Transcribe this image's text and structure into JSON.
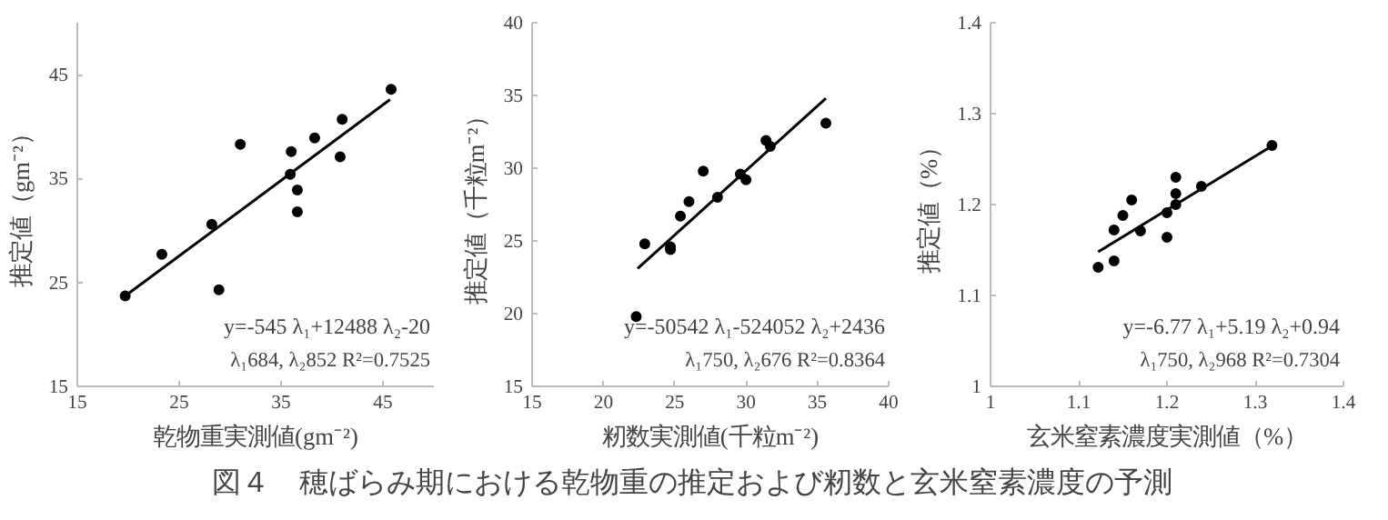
{
  "chart_data": [
    {
      "type": "scatter",
      "xlabel": "乾物重実測値(gm⁻²)",
      "ylabel": "推定値（gm⁻²）",
      "xlim": [
        15,
        50
      ],
      "ylim": [
        15,
        50
      ],
      "xticks": [
        15,
        25,
        35,
        45
      ],
      "yticks": [
        15,
        25,
        35,
        45
      ],
      "annotations": [
        "y=-545 λ₁+12488 λ₂-20",
        "λ₁684, λ₂852 R²=0.7525"
      ],
      "series": [
        {
          "marker": "circle",
          "color": "#000000",
          "x": [
            19.7,
            23.3,
            28.2,
            28.9,
            31.0,
            36.0,
            35.9,
            36.6,
            36.6,
            38.3,
            41.0,
            40.8,
            45.8
          ],
          "values": [
            23.7,
            27.7,
            30.6,
            24.3,
            38.3,
            37.6,
            35.4,
            33.9,
            31.8,
            38.9,
            40.7,
            37.1,
            43.6
          ]
        },
        {
          "type": "line",
          "color": "#000000",
          "x": [
            19.7,
            45.7
          ],
          "values": [
            23.7,
            42.6
          ]
        }
      ]
    },
    {
      "type": "scatter",
      "xlabel": "籾数実測値(千粒m⁻²)",
      "ylabel": "推定値（千粒m⁻²）",
      "xlim": [
        15,
        40
      ],
      "ylim": [
        15,
        40
      ],
      "xticks": [
        15,
        20,
        25,
        30,
        35,
        40
      ],
      "yticks": [
        15,
        20,
        25,
        30,
        35,
        40
      ],
      "annotations": [
        "y=-50542 λ₁-524052 λ₂+2436",
        "λ₁750, λ₂676 R²=0.8364"
      ],
      "series": [
        {
          "marker": "circle",
          "color": "#000000",
          "x": [
            22.3,
            22.9,
            24.7,
            24.7,
            25.4,
            26.0,
            27.0,
            28.0,
            29.6,
            30.0,
            31.4,
            31.7,
            35.6
          ],
          "values": [
            19.8,
            24.8,
            24.6,
            24.4,
            26.7,
            27.7,
            29.8,
            28.0,
            29.6,
            29.2,
            31.9,
            31.5,
            33.1
          ]
        },
        {
          "type": "line",
          "color": "#000000",
          "x": [
            22.4,
            35.6
          ],
          "values": [
            23.1,
            34.8
          ]
        }
      ]
    },
    {
      "type": "scatter",
      "xlabel": "玄米窒素濃度実測値（%）",
      "ylabel": "推定値（%）",
      "xlim": [
        1,
        1.4
      ],
      "ylim": [
        1,
        1.4
      ],
      "xticks": [
        1,
        1.1,
        1.2,
        1.3,
        1.4
      ],
      "yticks": [
        1,
        1.1,
        1.2,
        1.3,
        1.4
      ],
      "annotations": [
        "y=-6.77 λ₁+5.19 λ₂+0.94",
        "λ₁750, λ₂968 R²=0.7304"
      ],
      "series": [
        {
          "marker": "circle",
          "color": "#000000",
          "x": [
            1.122,
            1.14,
            1.14,
            1.15,
            1.16,
            1.17,
            1.2,
            1.2,
            1.21,
            1.21,
            1.21,
            1.239,
            1.319
          ],
          "values": [
            1.131,
            1.172,
            1.138,
            1.188,
            1.205,
            1.171,
            1.191,
            1.164,
            1.23,
            1.212,
            1.2,
            1.22,
            1.265
          ]
        },
        {
          "type": "line",
          "color": "#000000",
          "x": [
            1.122,
            1.32
          ],
          "values": [
            1.148,
            1.265
          ]
        }
      ]
    },
    {
      "type": "other",
      "title": "図４　穂ばらみ期における乾物重の推定および籾数と玄米窒素濃度の予測"
    }
  ]
}
